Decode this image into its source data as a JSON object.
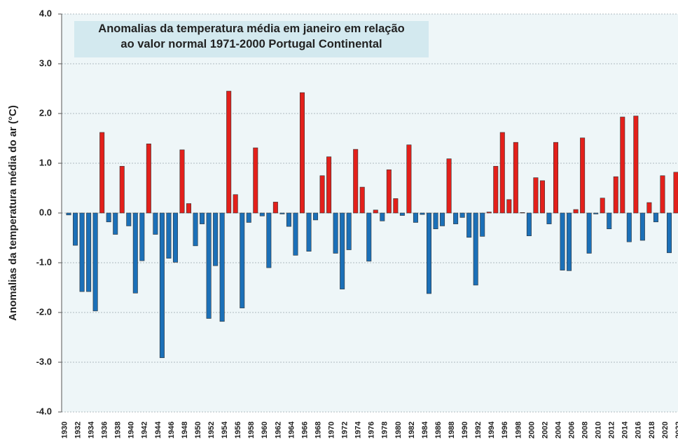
{
  "chart_data": {
    "type": "bar",
    "title": "Anomalias da temperatura média em janeiro em relação ao valor normal 1971-2000 Portugal Continental",
    "y_label": "Anomalias da temperatura média do ar (°C)",
    "categories": [
      "1930",
      null,
      "1932",
      null,
      "1934",
      null,
      "1936",
      null,
      "1938",
      null,
      "1940",
      null,
      "1942",
      null,
      "1944",
      null,
      "1946",
      null,
      "1948",
      null,
      "1950",
      null,
      "1952",
      null,
      "1954",
      null,
      "1956",
      null,
      "1958",
      null,
      "1960",
      null,
      "1962",
      null,
      "1964",
      null,
      "1966",
      null,
      "1968",
      null,
      "1970",
      null,
      "1972",
      null,
      "1974",
      null,
      "1976",
      null,
      "1978",
      null,
      "1980",
      null,
      "1982",
      null,
      "1984",
      null,
      "1986",
      null,
      "1988",
      null,
      "1990",
      null,
      "1992",
      null,
      "1994",
      null,
      "1996",
      null,
      "1998",
      null,
      "2000",
      null,
      "2002",
      null,
      "2004",
      null,
      "2006",
      null,
      "2008",
      null,
      "2010",
      null,
      "2012",
      null,
      "2014",
      null,
      "2016",
      null,
      "2018",
      null,
      "2020",
      null,
      "2022"
    ],
    "values": [
      null,
      -0.04,
      -0.65,
      -1.58,
      -1.58,
      -1.97,
      1.62,
      -0.18,
      -0.43,
      0.94,
      -0.26,
      -1.61,
      -0.96,
      1.39,
      -0.43,
      -2.91,
      -0.91,
      -0.99,
      1.27,
      0.19,
      -0.66,
      -0.22,
      -2.12,
      -1.06,
      -2.18,
      2.45,
      0.37,
      -1.91,
      -0.19,
      1.31,
      -0.06,
      -1.1,
      0.22,
      -0.02,
      -0.27,
      -0.85,
      2.42,
      -0.77,
      -0.14,
      0.75,
      1.13,
      -0.81,
      -1.53,
      -0.74,
      1.28,
      0.52,
      -0.97,
      0.06,
      -0.16,
      0.87,
      0.29,
      -0.05,
      1.37,
      -0.19,
      -0.03,
      -1.62,
      -0.32,
      -0.26,
      1.09,
      -0.22,
      -0.09,
      -0.49,
      -1.45,
      -0.47,
      0.02,
      0.94,
      1.62,
      0.27,
      1.42,
      0.01,
      -0.46,
      0.71,
      0.65,
      -0.22,
      1.42,
      -1.15,
      -1.16,
      0.07,
      1.51,
      -0.81,
      -0.02,
      0.3,
      -0.32,
      0.73,
      1.93,
      -0.58,
      1.95,
      -0.55,
      0.21,
      -0.18,
      0.75,
      -0.8,
      0.82
    ],
    "colors": {
      "positive": "#e3201b",
      "negative": "#1b70b8"
    },
    "ylim": [
      -4,
      4
    ],
    "yticks": [
      {
        "value": -4,
        "label": "-4.0"
      },
      {
        "value": -3,
        "label": "-3.0"
      },
      {
        "value": -2,
        "label": "-2.0"
      },
      {
        "value": -1,
        "label": "-1.0"
      },
      {
        "value": 0,
        "label": "0.0"
      },
      {
        "value": 1,
        "label": "1.0"
      },
      {
        "value": 2,
        "label": "2.0"
      },
      {
        "value": 3,
        "label": "3.0"
      },
      {
        "value": 4,
        "label": "4.0"
      }
    ],
    "grid": true
  }
}
